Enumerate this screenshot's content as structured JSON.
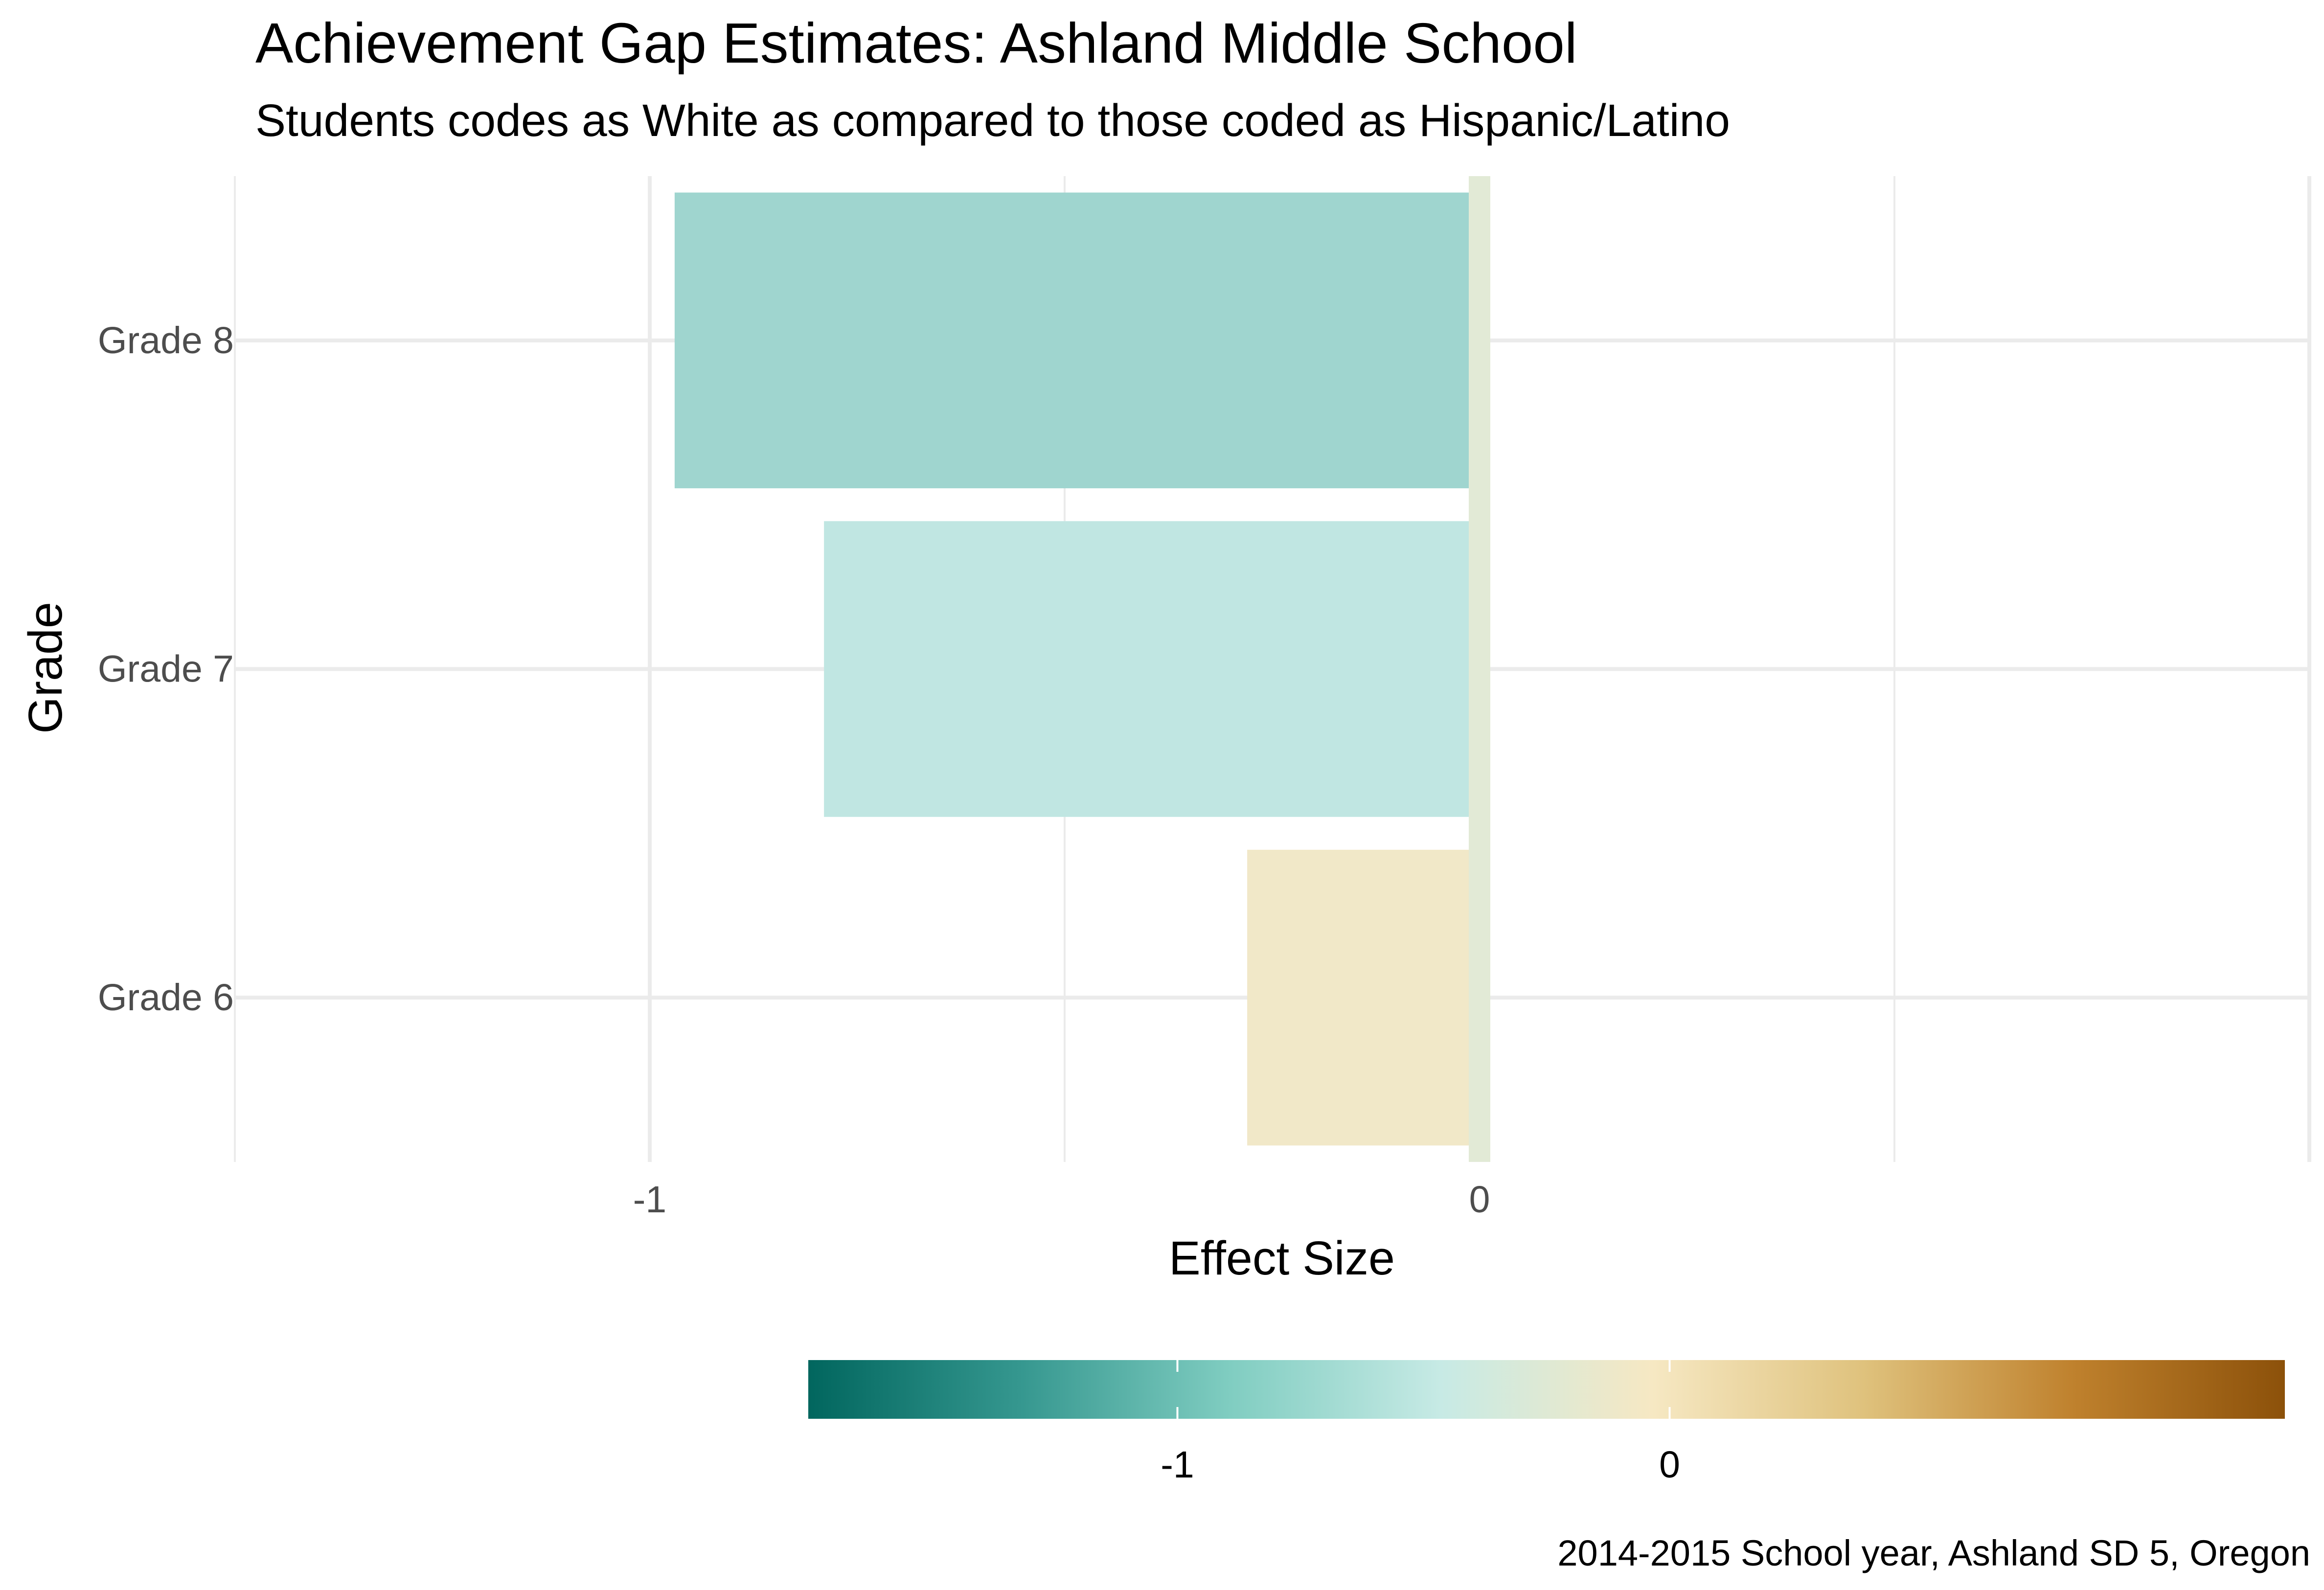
{
  "chart_data": {
    "type": "bar",
    "orientation": "horizontal",
    "title": "Achievement Gap Estimates: Ashland Middle School",
    "subtitle": "Students codes as White as compared to those coded as Hispanic/Latino",
    "xlabel": "Effect Size",
    "ylabel": "Grade",
    "caption": "2014-2015 School year, Ashland SD 5, Oregon",
    "categories": [
      "Grade 8",
      "Grade 7",
      "Grade 6"
    ],
    "values": [
      -0.97,
      -0.79,
      -0.28
    ],
    "bar_colors": [
      "#9fd5cf",
      "#c0e6e2",
      "#f1e8c8"
    ],
    "xlim": [
      -1.5,
      1.0
    ],
    "x_ticks": [
      -1,
      0
    ],
    "x_tick_labels": [
      "-1",
      "0"
    ],
    "grid": true,
    "zero_line": {
      "x": 0,
      "color": "#e2ead6"
    },
    "legend": {
      "placement": "bottom",
      "type": "colorbar",
      "range": [
        -1.75,
        1.25
      ],
      "ticks": [
        -1,
        0
      ],
      "tick_labels": [
        "-1",
        "0"
      ],
      "colors": [
        "#01665e",
        "#35978f",
        "#80cdc1",
        "#c7eae5",
        "#f6e8c3",
        "#dfc27d",
        "#bf812d",
        "#8c510a"
      ]
    }
  }
}
